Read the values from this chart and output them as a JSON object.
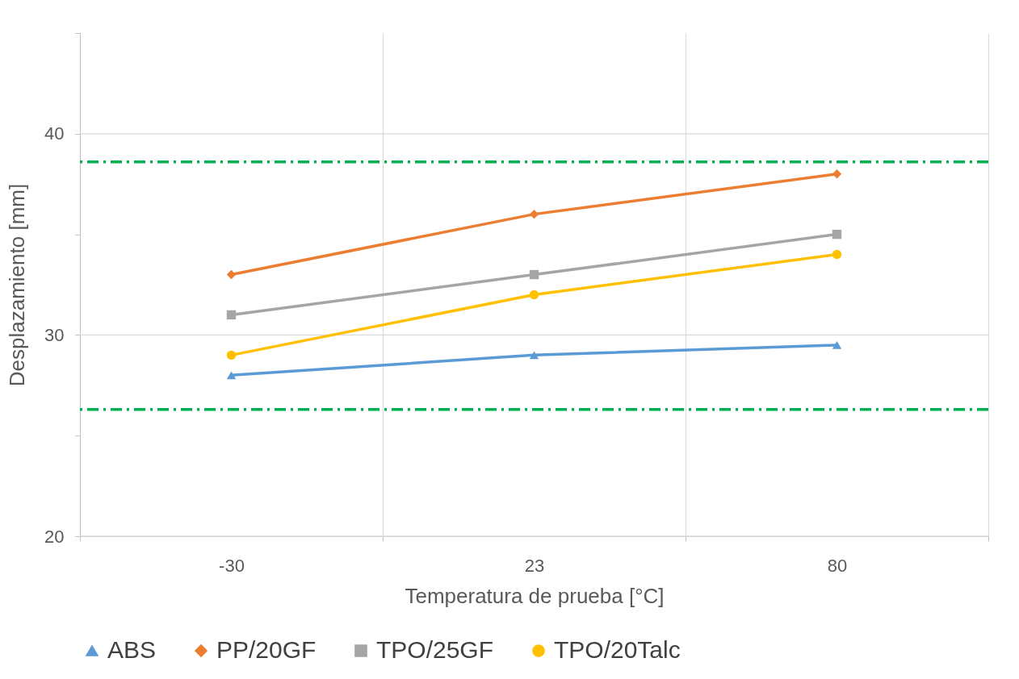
{
  "chart_data": {
    "type": "line",
    "xlabel": "Temperatura de prueba [°C]",
    "ylabel": "Desplazamiento [mm]",
    "categories": [
      "-30",
      "23",
      "80"
    ],
    "ylim": [
      20,
      45
    ],
    "yticks": [
      20,
      {
        "value": 25,
        "label": null
      },
      30,
      {
        "value": 35,
        "label": null
      },
      40,
      {
        "value": 45,
        "label": null
      }
    ],
    "grid": true,
    "legend": "bottom",
    "series": [
      {
        "name": "ABS",
        "color": "#5b9bd5",
        "marker": "triangle",
        "values": [
          28,
          29,
          29.5
        ]
      },
      {
        "name": "PP/20GF",
        "color": "#ed7d31",
        "marker": "diamond",
        "values": [
          33,
          36,
          38
        ]
      },
      {
        "name": "TPO/25GF",
        "color": "#a5a5a5",
        "marker": "square",
        "values": [
          31,
          33,
          35
        ]
      },
      {
        "name": "TPO/20Talc",
        "color": "#ffc000",
        "marker": "circle",
        "values": [
          29,
          32,
          34
        ]
      }
    ],
    "ref_lines": [
      {
        "axis": "y",
        "value": 38.6,
        "label": null,
        "color": "#00b050",
        "line_style": "dashdot"
      },
      {
        "axis": "y",
        "value": 26.3,
        "label": null,
        "color": "#00b050",
        "line_style": "dashdot"
      }
    ]
  }
}
